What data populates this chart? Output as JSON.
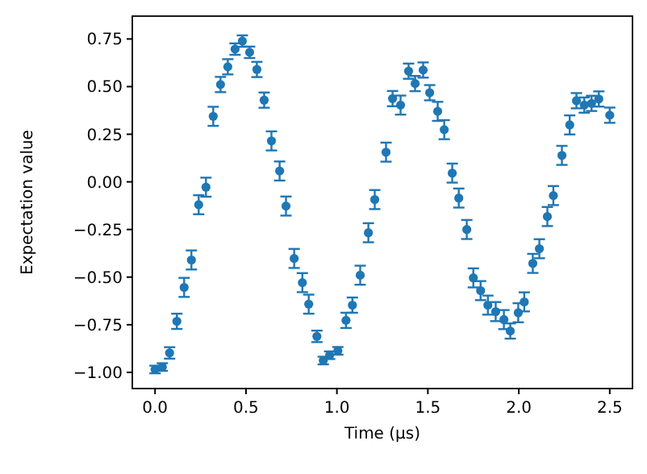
{
  "chart_data": {
    "type": "scatter",
    "xlabel": "Time (μs)",
    "ylabel": "Expectation value",
    "marker": "circle",
    "xlim": [
      -0.125,
      2.625
    ],
    "ylim": [
      -1.085,
      0.87
    ],
    "xticks": [
      {
        "value": 0,
        "label": "0.0"
      },
      {
        "value": 0.5,
        "label": "0.5"
      },
      {
        "value": 1,
        "label": "1.0"
      },
      {
        "value": 1.5,
        "label": "1.5"
      },
      {
        "value": 2,
        "label": "2.0"
      },
      {
        "value": 2.5,
        "label": "2.5"
      }
    ],
    "yticks": [
      {
        "value": -1,
        "label": "−1.00"
      },
      {
        "value": -0.75,
        "label": "−0.75"
      },
      {
        "value": -0.5,
        "label": "−0.50"
      },
      {
        "value": -0.25,
        "label": "−0.25"
      },
      {
        "value": 0,
        "label": "0.00"
      },
      {
        "value": 0.25,
        "label": "0.25"
      },
      {
        "value": 0.5,
        "label": "0.50"
      },
      {
        "value": 0.75,
        "label": "0.75"
      }
    ],
    "series": [
      {
        "color": "#1f77b4",
        "x": [
          0,
          0.04,
          0.08,
          0.12,
          0.16,
          0.2,
          0.24,
          0.28,
          0.32,
          0.36,
          0.4,
          0.44,
          0.48,
          0.52,
          0.56,
          0.6,
          0.64,
          0.685,
          0.72,
          0.765,
          0.81,
          0.845,
          0.89,
          0.925,
          0.96,
          1.005,
          1.05,
          1.085,
          1.128,
          1.173,
          1.208,
          1.27,
          1.306,
          1.35,
          1.394,
          1.43,
          1.474,
          1.51,
          1.554,
          1.59,
          1.634,
          1.67,
          1.714,
          1.75,
          1.79,
          1.83,
          1.873,
          1.918,
          1.953,
          1.997,
          2.03,
          2.077,
          2.113,
          2.157,
          2.19,
          2.237,
          2.28,
          2.317,
          2.36,
          2.4,
          2.44,
          2.5
        ],
        "values": [
          -0.985,
          -0.972,
          -0.898,
          -0.732,
          -0.554,
          -0.41,
          -0.12,
          -0.028,
          0.344,
          0.511,
          0.604,
          0.697,
          0.739,
          0.68,
          0.59,
          0.429,
          0.215,
          0.057,
          -0.127,
          -0.402,
          -0.529,
          -0.642,
          -0.811,
          -0.938,
          -0.91,
          -0.887,
          -0.727,
          -0.647,
          -0.49,
          -0.267,
          -0.093,
          0.156,
          0.437,
          0.403,
          0.581,
          0.516,
          0.587,
          0.468,
          0.37,
          0.274,
          0.046,
          -0.085,
          -0.25,
          -0.504,
          -0.571,
          -0.647,
          -0.681,
          -0.723,
          -0.783,
          -0.687,
          -0.63,
          -0.428,
          -0.351,
          -0.182,
          -0.072,
          0.139,
          0.299,
          0.426,
          0.403,
          0.412,
          0.435,
          0.35
        ],
        "errors": [
          0.02,
          0.02,
          0.03,
          0.04,
          0.05,
          0.05,
          0.05,
          0.05,
          0.05,
          0.04,
          0.04,
          0.03,
          0.03,
          0.03,
          0.04,
          0.04,
          0.05,
          0.05,
          0.05,
          0.05,
          0.05,
          0.05,
          0.03,
          0.02,
          0.02,
          0.02,
          0.04,
          0.04,
          0.05,
          0.05,
          0.05,
          0.05,
          0.04,
          0.05,
          0.04,
          0.04,
          0.04,
          0.04,
          0.05,
          0.05,
          0.05,
          0.05,
          0.05,
          0.05,
          0.05,
          0.05,
          0.05,
          0.05,
          0.04,
          0.05,
          0.05,
          0.05,
          0.05,
          0.05,
          0.05,
          0.05,
          0.05,
          0.04,
          0.04,
          0.04,
          0.04,
          0.04
        ]
      }
    ]
  }
}
